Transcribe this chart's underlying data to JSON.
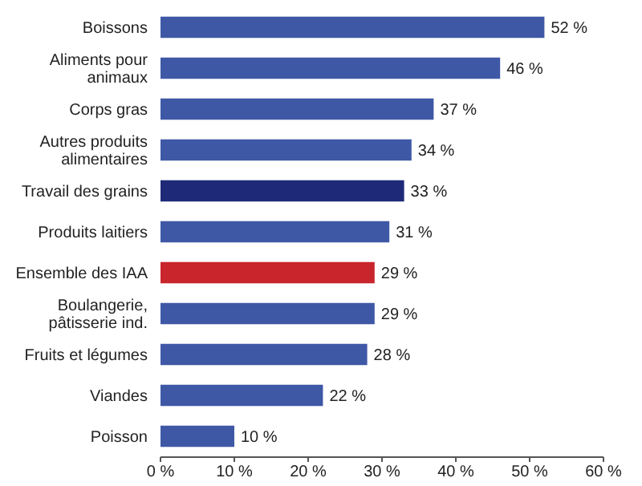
{
  "chart_data": {
    "type": "bar",
    "orientation": "horizontal",
    "categories": [
      "Boissons",
      "Aliments pour animaux",
      "Corps gras",
      "Autres produits alimentaires",
      "Travail des grains",
      "Produits laitiers",
      "Ensemble des IAA",
      "Boulangerie, pâtisserie ind.",
      "Fruits et légumes",
      "Viandes",
      "Poisson"
    ],
    "values": [
      52,
      46,
      37,
      34,
      33,
      31,
      29,
      29,
      28,
      22,
      10
    ],
    "colors": [
      "#3f58a6",
      "#3f58a6",
      "#3f58a6",
      "#3f58a6",
      "#1e2a78",
      "#3f58a6",
      "#c8252c",
      "#3f58a6",
      "#3f58a6",
      "#3f58a6",
      "#3f58a6"
    ],
    "value_labels": [
      "52 %",
      "46 %",
      "37 %",
      "34 %",
      "33 %",
      "31 %",
      "29 %",
      "29 %",
      "28 %",
      "22 %",
      "10 %"
    ],
    "xlim": [
      0,
      60
    ],
    "xticks": [
      {
        "value": 0,
        "label": "0 %"
      },
      {
        "value": 10,
        "label": "10 %"
      },
      {
        "value": 20,
        "label": "20 %"
      },
      {
        "value": 30,
        "label": "30 %"
      },
      {
        "value": 40,
        "label": "40 %"
      },
      {
        "value": 50,
        "label": "50 %"
      },
      {
        "value": 60,
        "label": "60 %"
      }
    ],
    "grid": false
  }
}
